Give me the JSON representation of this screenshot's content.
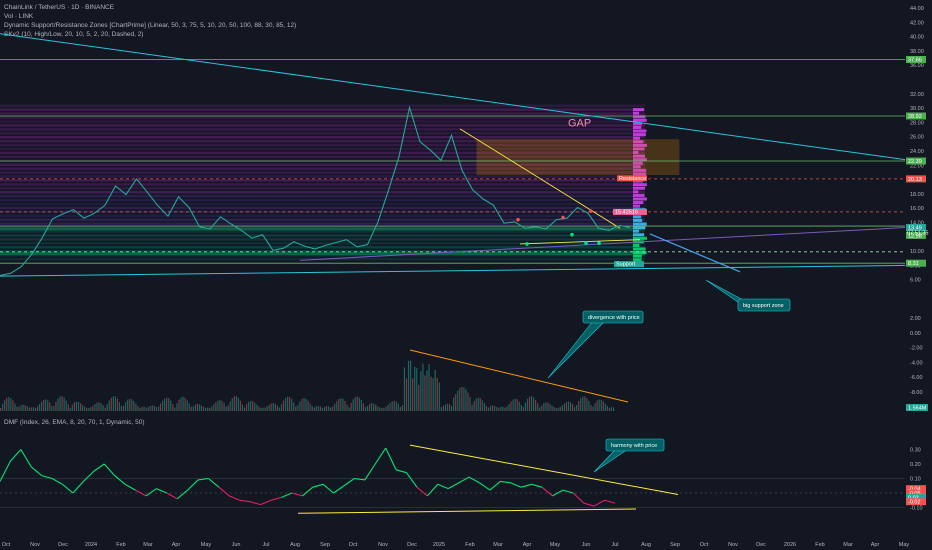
{
  "header": {
    "symbol_line": "ChainLink / TetherUS · 1D · BINANCE",
    "vol_line": "Vol · LINK",
    "indicator_line": "Dynamic Support/Resistance Zones [ChartPrime] (Linear, 50, 3, 75, 5, 10, 20, 50, 100, 88, 30, 85, 12)",
    "skv_line": "SKv2 (10, High/Low, 20, 10, 5, 2, 20, Dashed, 2)"
  },
  "dmf_header": "DMF (Index, 26, EMA, 8, 20, 70, 1, Dynamic, 50)",
  "chart_data": [
    {
      "type": "line",
      "title": "",
      "x_ticks": [
        "Oct",
        "Nov",
        "Dec",
        "2024",
        "Feb",
        "Mar",
        "Apr",
        "May",
        "Jun",
        "Jul",
        "Aug",
        "Sep",
        "Oct",
        "Nov",
        "Dec",
        "2025",
        "Feb",
        "Mar",
        "Apr",
        "May",
        "Jun",
        "Jul",
        "Aug",
        "Sep",
        "Oct",
        "Nov",
        "Dec",
        "2026",
        "Feb",
        "Mar",
        "Apr",
        "May"
      ],
      "y_ticks": [
        "44.00",
        "42.00",
        "40.00",
        "38.00",
        "36.00",
        "32.00",
        "30.00",
        "28.00",
        "26.00",
        "24.00",
        "22.00",
        "20.00",
        "18.00",
        "16.00",
        "14.00",
        "12.00",
        "10.00",
        "8.00",
        "6.00"
      ],
      "ylim": [
        5.5,
        44
      ],
      "series": [
        {
          "values": [
            6.6,
            6.9,
            7.8,
            9.5,
            11.8,
            14.5,
            15.2,
            15.8,
            14.6,
            15.3,
            16.4,
            19.1,
            17.9,
            20.1,
            18.3,
            16.4,
            14.9,
            17.6,
            16.1,
            13.4,
            13.1,
            14.8,
            13.8,
            12.9,
            11.8,
            12.3,
            10.1,
            10.4,
            11.3,
            10.7,
            10.3,
            10.8,
            11.2,
            11.6,
            10.6,
            10.9,
            14.1,
            18.5,
            23.2,
            30.1,
            25.3,
            24.1,
            22.7,
            26.2,
            21.3,
            18.6,
            17.3,
            16.4,
            13.9,
            14.1,
            13.2,
            13.4,
            13.1,
            14.4,
            14.6,
            16.1,
            15.3,
            13.2,
            12.9,
            13.6,
            13.3
          ]
        }
      ],
      "horizontal_levels": [
        36.8,
        28.9,
        22.6,
        20.1,
        15.49,
        13.5,
        9.9,
        8.31
      ],
      "level_labels": [
        "37.66",
        "28.92",
        "22.39",
        "20.13",
        "13.49",
        "12.98",
        "8.31"
      ],
      "current_price": "13.49",
      "countdown": "07:51:35",
      "zone_tags": [
        "Resistance",
        "15.42516"
      ],
      "support_tag": "Support",
      "annotations": [
        "GAP",
        "big support zone"
      ]
    },
    {
      "type": "bar",
      "title": "",
      "y_ticks": [
        "2.00",
        "0.00",
        "-2.00",
        "-4.00",
        "-6.00",
        "-8.00",
        "-10.00"
      ],
      "volume_label": "1.564M",
      "annotations": [
        "divergence with price"
      ]
    },
    {
      "type": "line",
      "title": "",
      "y_ticks": [
        "0.30",
        "0.20",
        "0.10",
        "0.00",
        "-0.10"
      ],
      "ylim": [
        -0.14,
        0.34
      ],
      "series": [
        {
          "values": [
            0.08,
            0.22,
            0.3,
            0.18,
            0.12,
            0.1,
            0.06,
            0.0,
            0.08,
            0.15,
            0.2,
            0.12,
            0.06,
            0.02,
            -0.02,
            0.03,
            0.0,
            -0.04,
            0.02,
            0.09,
            0.1,
            0.04,
            -0.02,
            -0.05,
            -0.06,
            -0.08,
            -0.05,
            -0.03,
            0.0,
            -0.02,
            0.04,
            0.06,
            0.0,
            0.05,
            0.1,
            0.09,
            0.2,
            0.31,
            0.16,
            0.14,
            0.04,
            -0.02,
            0.06,
            0.03,
            0.07,
            0.11,
            0.07,
            0.02,
            0.08,
            0.07,
            0.04,
            0.06,
            0.04,
            -0.02,
            0.02,
            0.0,
            -0.07,
            -0.09,
            -0.05,
            -0.07
          ]
        }
      ],
      "value_tags": [
        "-0.04",
        "-0.05",
        "0.02",
        "-0.02"
      ],
      "annotations": [
        "harmony with price"
      ]
    }
  ]
}
